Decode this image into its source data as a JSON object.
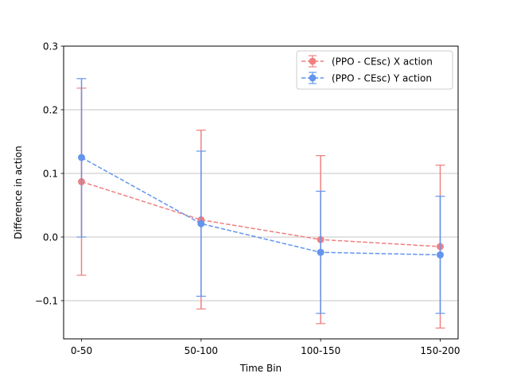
{
  "chart_data": {
    "type": "line",
    "title": "",
    "xlabel": "Time Bin",
    "ylabel": "Difference in action",
    "categories": [
      "0-50",
      "50-100",
      "100-150",
      "150-200"
    ],
    "ylim": [
      -0.16,
      0.3
    ],
    "yticks": [
      -0.1,
      0.0,
      0.1,
      0.2,
      0.3
    ],
    "ytick_labels": [
      "−0.1",
      "0.0",
      "0.1",
      "0.2",
      "0.3"
    ],
    "grid": "horizontal",
    "legend_position": "top-right",
    "series": [
      {
        "name": "(PPO - CEsc) X action",
        "color": "#f08080",
        "values": [
          0.087,
          0.027,
          -0.004,
          -0.015
        ],
        "err_low": [
          -0.06,
          -0.113,
          -0.136,
          -0.143
        ],
        "err_high": [
          0.234,
          0.168,
          0.128,
          0.113
        ]
      },
      {
        "name": "(PPO - CEsc) Y action",
        "color": "#6495ed",
        "values": [
          0.125,
          0.021,
          -0.024,
          -0.028
        ],
        "err_low": [
          0.0,
          -0.093,
          -0.12,
          -0.12
        ],
        "err_high": [
          0.249,
          0.135,
          0.072,
          0.064
        ]
      }
    ]
  }
}
